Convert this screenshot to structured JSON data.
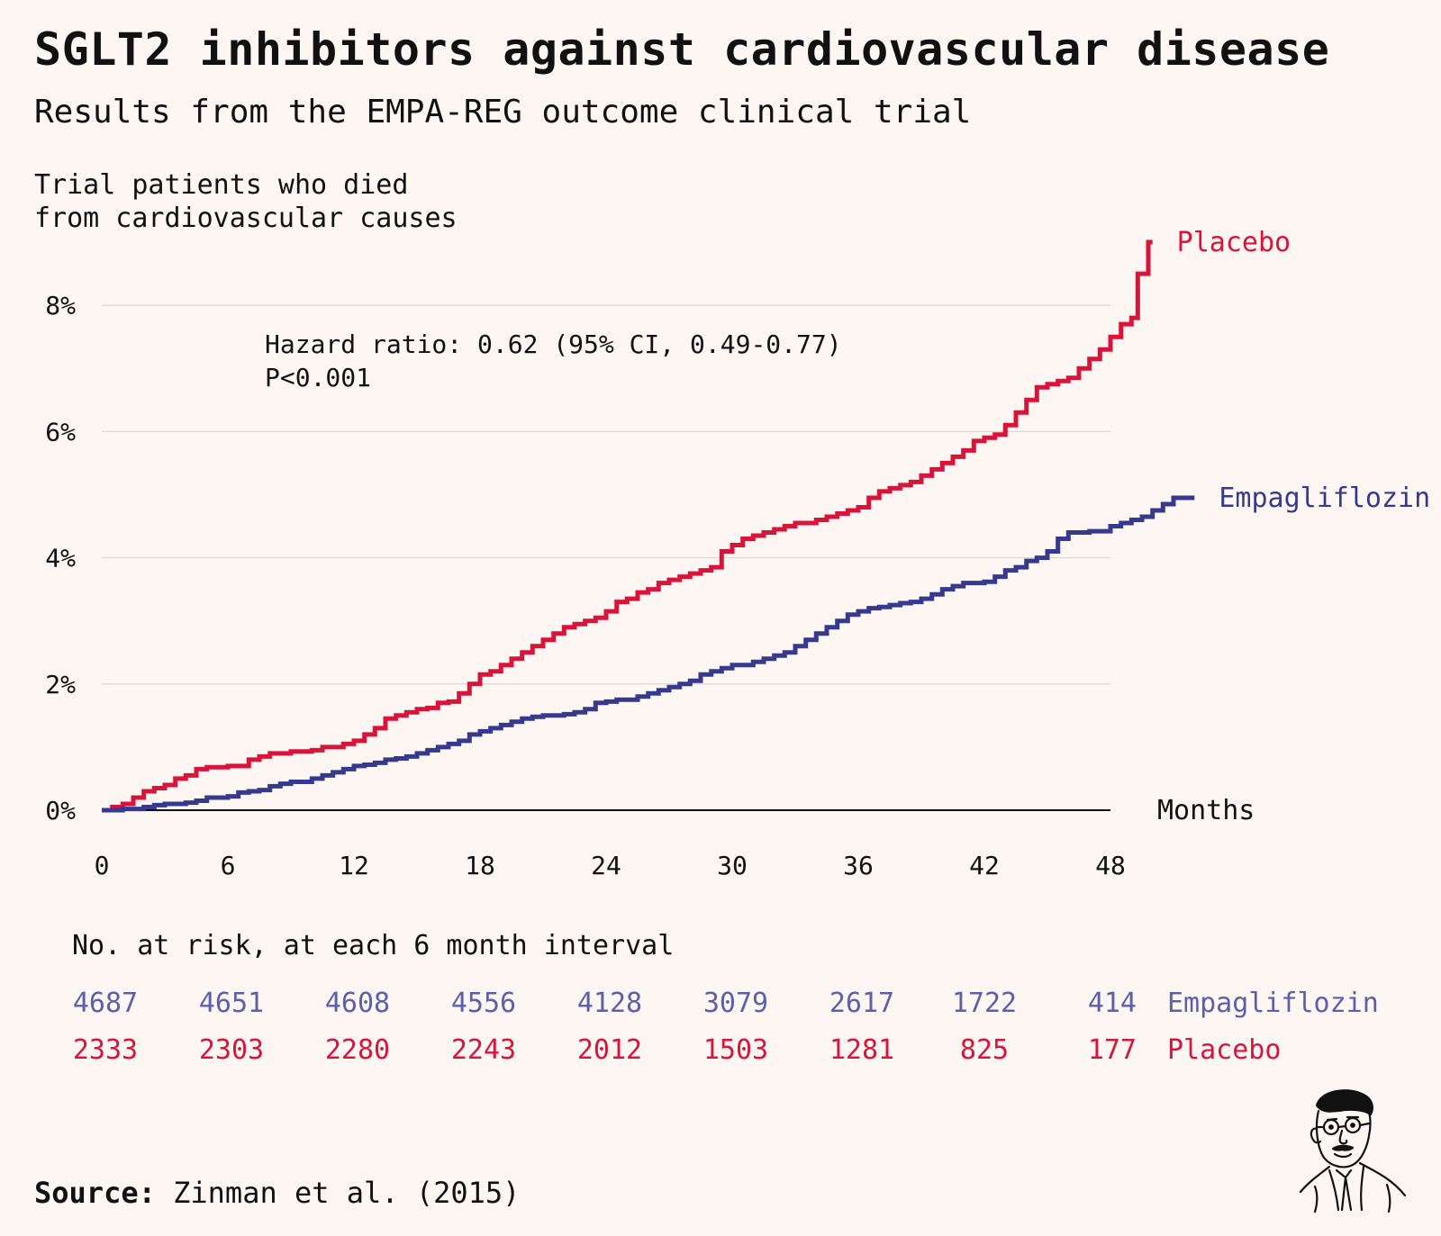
{
  "title": "SGLT2 inhibitors against cardiovascular disease",
  "subtitle": "Results from the EMPA-REG outcome clinical trial",
  "colors": {
    "placebo": "#d9143a",
    "empagliflozin": "#363a8f",
    "background": "#fdf6f2"
  },
  "chart_data": {
    "type": "line",
    "step": true,
    "title": "SGLT2 inhibitors against cardiovascular disease",
    "subtitle": "Results from the EMPA-REG outcome clinical trial",
    "ylabel_lines": [
      "Trial patients who died",
      "from cardiovascular causes"
    ],
    "xlabel": "Months",
    "xlim": [
      0,
      48
    ],
    "ylim": [
      0,
      9
    ],
    "x_ticks": [
      0,
      6,
      12,
      18,
      24,
      30,
      36,
      42,
      48
    ],
    "x_tick_labels": [
      "0",
      "6",
      "12",
      "18",
      "24",
      "30",
      "36",
      "42",
      "48"
    ],
    "y_ticks": [
      0,
      2,
      4,
      6,
      8
    ],
    "y_tick_labels": [
      "0%",
      "2%",
      "4%",
      "6%",
      "8%"
    ],
    "grid": true,
    "annotation_lines": [
      "Hazard ratio: 0.62 (95% CI, 0.49-0.77)",
      "P<0.001"
    ],
    "series": [
      {
        "name": "Placebo",
        "color": "#d9143a",
        "points": [
          [
            0,
            0
          ],
          [
            0.5,
            0.05
          ],
          [
            1,
            0.1
          ],
          [
            1.5,
            0.2
          ],
          [
            2,
            0.3
          ],
          [
            2.5,
            0.35
          ],
          [
            3,
            0.4
          ],
          [
            3.5,
            0.5
          ],
          [
            4,
            0.55
          ],
          [
            4.5,
            0.65
          ],
          [
            5,
            0.68
          ],
          [
            6,
            0.7
          ],
          [
            7,
            0.8
          ],
          [
            7.5,
            0.85
          ],
          [
            8,
            0.9
          ],
          [
            9,
            0.93
          ],
          [
            10,
            0.95
          ],
          [
            10.5,
            1.0
          ],
          [
            11.5,
            1.05
          ],
          [
            12,
            1.1
          ],
          [
            12.5,
            1.2
          ],
          [
            13,
            1.3
          ],
          [
            13.5,
            1.45
          ],
          [
            14,
            1.5
          ],
          [
            14.5,
            1.55
          ],
          [
            15,
            1.6
          ],
          [
            15.5,
            1.62
          ],
          [
            16,
            1.7
          ],
          [
            16.5,
            1.72
          ],
          [
            17,
            1.85
          ],
          [
            17.5,
            2.0
          ],
          [
            18,
            2.15
          ],
          [
            18.5,
            2.2
          ],
          [
            19,
            2.3
          ],
          [
            19.5,
            2.4
          ],
          [
            20,
            2.5
          ],
          [
            20.5,
            2.6
          ],
          [
            21,
            2.7
          ],
          [
            21.5,
            2.8
          ],
          [
            22,
            2.9
          ],
          [
            22.5,
            2.95
          ],
          [
            23,
            3.0
          ],
          [
            23.5,
            3.05
          ],
          [
            24,
            3.15
          ],
          [
            24.5,
            3.3
          ],
          [
            25,
            3.35
          ],
          [
            25.5,
            3.45
          ],
          [
            26,
            3.5
          ],
          [
            26.5,
            3.6
          ],
          [
            27,
            3.65
          ],
          [
            27.5,
            3.7
          ],
          [
            28,
            3.75
          ],
          [
            28.5,
            3.8
          ],
          [
            29,
            3.85
          ],
          [
            29.5,
            4.1
          ],
          [
            30,
            4.2
          ],
          [
            30.5,
            4.3
          ],
          [
            31,
            4.35
          ],
          [
            31.5,
            4.4
          ],
          [
            32,
            4.45
          ],
          [
            32.5,
            4.5
          ],
          [
            33,
            4.55
          ],
          [
            34,
            4.6
          ],
          [
            34.5,
            4.65
          ],
          [
            35,
            4.7
          ],
          [
            35.5,
            4.75
          ],
          [
            36,
            4.8
          ],
          [
            36.5,
            4.95
          ],
          [
            37,
            5.05
          ],
          [
            37.5,
            5.1
          ],
          [
            38,
            5.15
          ],
          [
            38.5,
            5.2
          ],
          [
            39,
            5.3
          ],
          [
            39.5,
            5.4
          ],
          [
            40,
            5.5
          ],
          [
            40.5,
            5.6
          ],
          [
            41,
            5.7
          ],
          [
            41.5,
            5.85
          ],
          [
            42,
            5.9
          ],
          [
            42.5,
            5.95
          ],
          [
            43,
            6.1
          ],
          [
            43.5,
            6.3
          ],
          [
            44,
            6.5
          ],
          [
            44.5,
            6.7
          ],
          [
            45,
            6.75
          ],
          [
            45.5,
            6.8
          ],
          [
            46,
            6.85
          ],
          [
            46.5,
            7.0
          ],
          [
            47,
            7.15
          ],
          [
            47.5,
            7.3
          ],
          [
            48,
            7.5
          ],
          [
            48.5,
            7.7
          ],
          [
            49,
            7.8
          ],
          [
            49.3,
            8.5
          ],
          [
            49.8,
            9.0
          ],
          [
            50,
            9.0
          ]
        ]
      },
      {
        "name": "Empagliflozin",
        "color": "#363a8f",
        "points": [
          [
            0,
            0
          ],
          [
            1,
            0.02
          ],
          [
            2,
            0.05
          ],
          [
            2.5,
            0.08
          ],
          [
            3,
            0.1
          ],
          [
            4,
            0.12
          ],
          [
            4.5,
            0.15
          ],
          [
            5,
            0.2
          ],
          [
            6,
            0.22
          ],
          [
            6.5,
            0.28
          ],
          [
            7,
            0.3
          ],
          [
            7.5,
            0.32
          ],
          [
            8,
            0.38
          ],
          [
            8.5,
            0.42
          ],
          [
            9,
            0.45
          ],
          [
            10,
            0.5
          ],
          [
            10.5,
            0.55
          ],
          [
            11,
            0.6
          ],
          [
            11.5,
            0.65
          ],
          [
            12,
            0.7
          ],
          [
            12.5,
            0.72
          ],
          [
            13,
            0.75
          ],
          [
            13.5,
            0.8
          ],
          [
            14,
            0.82
          ],
          [
            14.5,
            0.85
          ],
          [
            15,
            0.9
          ],
          [
            15.5,
            0.95
          ],
          [
            16,
            1.0
          ],
          [
            16.5,
            1.05
          ],
          [
            17,
            1.1
          ],
          [
            17.5,
            1.2
          ],
          [
            18,
            1.25
          ],
          [
            18.5,
            1.3
          ],
          [
            19,
            1.35
          ],
          [
            19.5,
            1.4
          ],
          [
            20,
            1.45
          ],
          [
            20.5,
            1.48
          ],
          [
            21,
            1.5
          ],
          [
            22,
            1.52
          ],
          [
            22.5,
            1.55
          ],
          [
            23,
            1.6
          ],
          [
            23.5,
            1.7
          ],
          [
            24,
            1.72
          ],
          [
            24.5,
            1.75
          ],
          [
            25.5,
            1.8
          ],
          [
            26,
            1.85
          ],
          [
            26.5,
            1.9
          ],
          [
            27,
            1.95
          ],
          [
            27.5,
            2.0
          ],
          [
            28,
            2.05
          ],
          [
            28.5,
            2.15
          ],
          [
            29,
            2.2
          ],
          [
            29.5,
            2.25
          ],
          [
            30,
            2.3
          ],
          [
            31,
            2.35
          ],
          [
            31.5,
            2.4
          ],
          [
            32,
            2.45
          ],
          [
            32.5,
            2.5
          ],
          [
            33,
            2.6
          ],
          [
            33.5,
            2.7
          ],
          [
            34,
            2.8
          ],
          [
            34.5,
            2.9
          ],
          [
            35,
            3.0
          ],
          [
            35.5,
            3.1
          ],
          [
            36,
            3.15
          ],
          [
            36.5,
            3.2
          ],
          [
            37,
            3.22
          ],
          [
            37.5,
            3.25
          ],
          [
            38,
            3.28
          ],
          [
            38.5,
            3.3
          ],
          [
            39,
            3.35
          ],
          [
            39.5,
            3.42
          ],
          [
            40,
            3.5
          ],
          [
            40.5,
            3.55
          ],
          [
            41,
            3.6
          ],
          [
            42,
            3.62
          ],
          [
            42.5,
            3.7
          ],
          [
            43,
            3.8
          ],
          [
            43.5,
            3.85
          ],
          [
            44,
            3.95
          ],
          [
            44.5,
            4.0
          ],
          [
            45,
            4.1
          ],
          [
            45.5,
            4.3
          ],
          [
            46,
            4.4
          ],
          [
            47,
            4.42
          ],
          [
            48,
            4.5
          ],
          [
            48.5,
            4.55
          ],
          [
            49,
            4.6
          ],
          [
            49.5,
            4.65
          ],
          [
            50,
            4.75
          ],
          [
            50.5,
            4.85
          ],
          [
            51,
            4.95
          ],
          [
            52,
            4.95
          ]
        ]
      }
    ],
    "risk_table": {
      "title": "No. at risk, at each 6 month interval",
      "months": [
        0,
        6,
        12,
        18,
        24,
        30,
        36,
        42,
        48
      ],
      "rows": [
        {
          "name": "Empagliflozin",
          "color": "#5a5fae",
          "values": [
            "4687",
            "4651",
            "4608",
            "4556",
            "4128",
            "3079",
            "2617",
            "1722",
            "414"
          ]
        },
        {
          "name": "Placebo",
          "color": "#d9143a",
          "values": [
            "2333",
            "2303",
            "2280",
            "2243",
            "2012",
            "1503",
            "1281",
            "825",
            "177"
          ]
        }
      ]
    }
  },
  "source": {
    "label": "Source:",
    "text": "Zinman et al. (2015)"
  }
}
